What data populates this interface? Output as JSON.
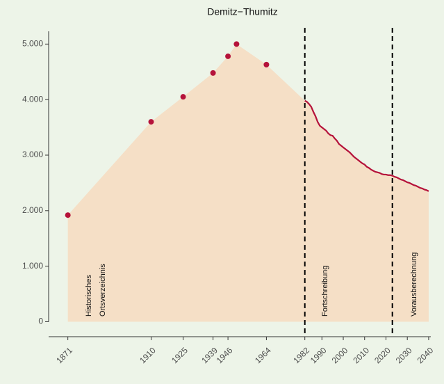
{
  "chart_data": {
    "type": "area-line",
    "title": "Demitz−Thumitz",
    "xlim": [
      1862,
      2041
    ],
    "ylim": [
      -270,
      5230
    ],
    "xticks": [
      1871,
      1910,
      1925,
      1939,
      1946,
      1964,
      1982,
      1990,
      2000,
      2010,
      2020,
      2030,
      2040
    ],
    "yticks": [
      0,
      {
        "value": 1000,
        "label": "1.000"
      },
      {
        "value": 2000,
        "label": "2.000"
      },
      {
        "value": 3000,
        "label": "3.000"
      },
      {
        "value": 4000,
        "label": "4.000"
      },
      {
        "value": 5000,
        "label": "5.000"
      }
    ],
    "area_color": "#f5dfc6",
    "vlines": [
      1982,
      2023
    ],
    "annotations": [
      [
        "Historisches",
        "Ortsverzeichnis"
      ],
      [
        "Fortschreibung"
      ],
      [
        "Vorausberechnung"
      ]
    ],
    "series": [
      {
        "kind": "points",
        "color": "#b5123a",
        "x": [
          1871,
          1910,
          1925,
          1939,
          1946,
          1950,
          1964
        ],
        "values": [
          1920,
          3600,
          4050,
          4480,
          4780,
          5000,
          4630
        ]
      },
      {
        "kind": "line",
        "color": "#b5123a",
        "x": [
          1982,
          1983,
          1984,
          1985,
          1986,
          1987,
          1988,
          1989,
          1990,
          1991,
          1992,
          1993,
          1994,
          1995,
          1996,
          1997,
          1998,
          1999,
          2000,
          2001,
          2002,
          2003,
          2004,
          2005,
          2006,
          2007,
          2008,
          2009,
          2010,
          2011,
          2012,
          2013,
          2014,
          2015,
          2016,
          2017,
          2018,
          2019,
          2020,
          2021,
          2022,
          2023,
          2024,
          2025,
          2026,
          2027,
          2028,
          2029,
          2030,
          2031,
          2032,
          2033,
          2034,
          2035,
          2036,
          2037,
          2038,
          2039,
          2040
        ],
        "values": [
          3980,
          3960,
          3920,
          3870,
          3780,
          3700,
          3600,
          3530,
          3500,
          3470,
          3440,
          3390,
          3360,
          3350,
          3300,
          3260,
          3200,
          3170,
          3140,
          3110,
          3080,
          3050,
          3010,
          2970,
          2940,
          2910,
          2880,
          2850,
          2830,
          2790,
          2770,
          2740,
          2720,
          2700,
          2690,
          2680,
          2660,
          2650,
          2650,
          2640,
          2640,
          2630,
          2610,
          2600,
          2580,
          2560,
          2550,
          2530,
          2510,
          2500,
          2480,
          2460,
          2450,
          2430,
          2410,
          2400,
          2380,
          2370,
          2350
        ]
      }
    ]
  }
}
